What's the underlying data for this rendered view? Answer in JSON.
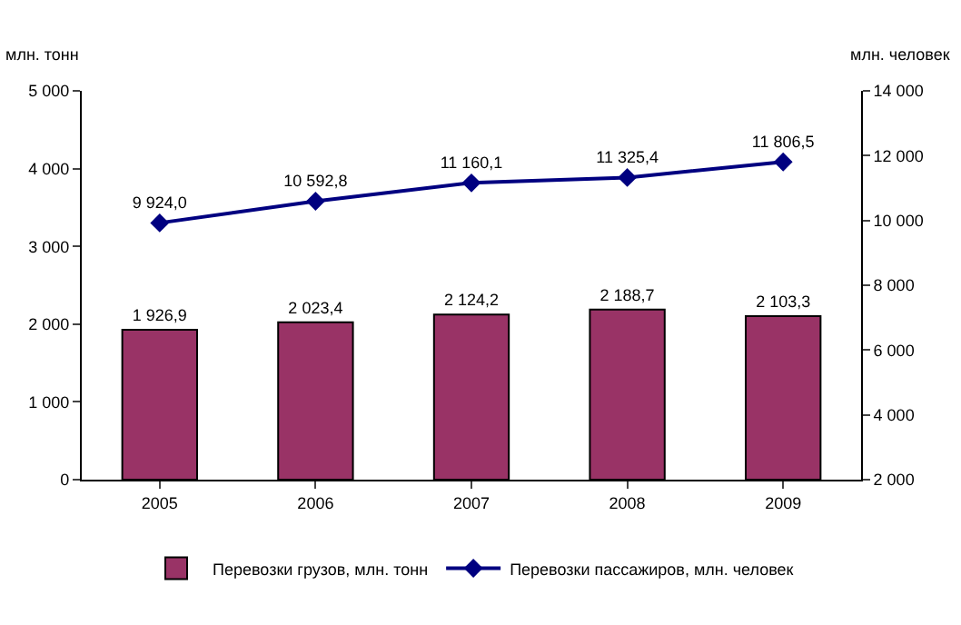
{
  "chart_data": {
    "type": "bar",
    "categories": [
      "2005",
      "2006",
      "2007",
      "2008",
      "2009"
    ],
    "ylabel": "млн. тонн",
    "y2label": "млн. человек",
    "series": [
      {
        "name": "Перевозки грузов, млн. тонн",
        "color": "#993366",
        "values": [
          1926.9,
          2023.4,
          2124.2,
          2188.7,
          2103.3
        ],
        "value_labels": [
          "1 926,9",
          "2 023,4",
          "2 124,2",
          "2 188,7",
          "2 103,3"
        ]
      },
      {
        "type": "line",
        "axis": "y2",
        "name": "Перевозки пассажиров, млн. человек",
        "color": "#000080",
        "marker": "diamond",
        "values": [
          9924.0,
          10592.8,
          11160.1,
          11325.4,
          11806.5
        ],
        "value_labels": [
          "9 924,0",
          "10 592,8",
          "11 160,1",
          "11 325,4",
          "11 806,5"
        ]
      }
    ],
    "ylim": [
      0,
      5000
    ],
    "yticks": [
      0,
      {
        "value": 1000,
        "label": "1 000"
      },
      {
        "value": 2000,
        "label": "2 000"
      },
      {
        "value": 3000,
        "label": "3 000"
      },
      {
        "value": 4000,
        "label": "4 000"
      },
      {
        "value": 5000,
        "label": "5 000"
      }
    ],
    "y2lim": [
      2000,
      14000
    ],
    "y2ticks": [
      {
        "value": 2000,
        "label": "2 000"
      },
      {
        "value": 4000,
        "label": "4 000"
      },
      {
        "value": 6000,
        "label": "6 000"
      },
      {
        "value": 8000,
        "label": "8 000"
      },
      {
        "value": 10000,
        "label": "10 000"
      },
      {
        "value": 12000,
        "label": "12 000"
      },
      {
        "value": 14000,
        "label": "14 000"
      }
    ],
    "grid": false,
    "legend": "bottom"
  }
}
